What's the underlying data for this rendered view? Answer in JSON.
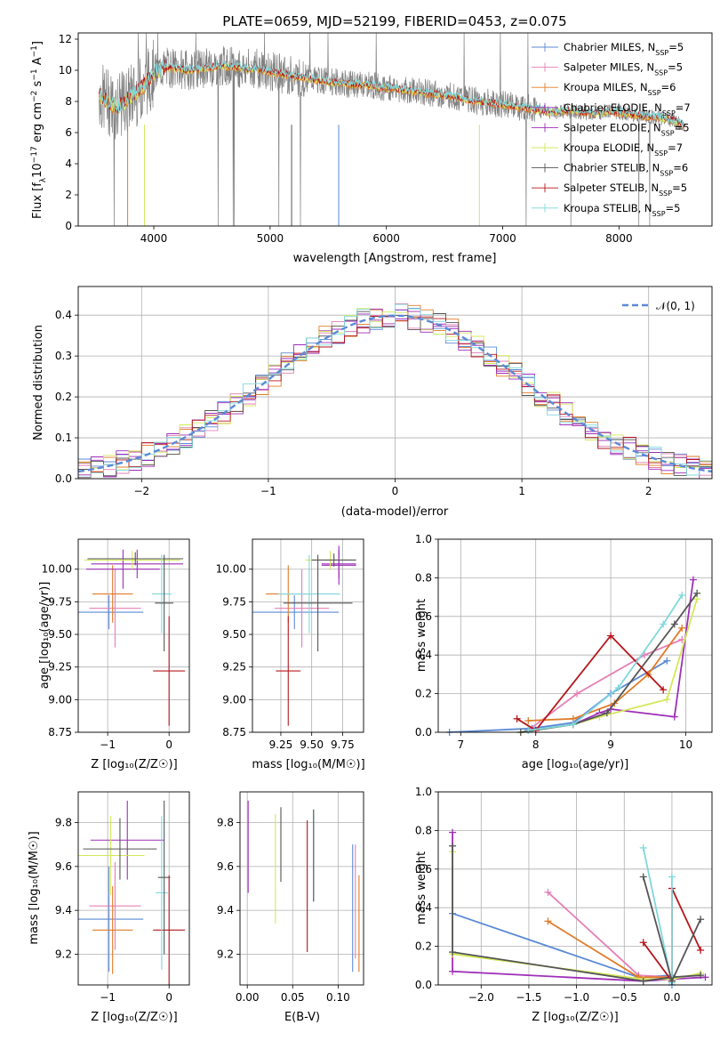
{
  "title": "PLATE=0659, MJD=52199, FIBERID=0453, z=0.075",
  "colors": {
    "Chabrier MILES": "#5b8ad6",
    "Salpeter MILES": "#e57fb6",
    "Kroupa MILES": "#e07b28",
    "Chabrier ELODIE": "#9e2fb8",
    "Salpeter ELODIE": "#9e2fb8",
    "Kroupa ELODIE": "#d4e85a",
    "Chabrier STELIB": "#555555",
    "Salpeter STELIB": "#b5171c",
    "Kroupa STELIB": "#7fd8dc"
  },
  "chart_data": [
    {
      "type": "line",
      "id": "spectrum",
      "title": "PLATE=0659, MJD=52199, FIBERID=0453, z=0.075",
      "xlabel": "wavelength [Angstrom, rest frame]",
      "ylabel_parts": [
        "Flux [f",
        "λ",
        "10",
        "−17",
        " erg cm",
        "−2",
        " s",
        "−1",
        " A",
        "−1",
        "]"
      ],
      "xlim": [
        3350,
        8800
      ],
      "ylim": [
        0,
        12.4
      ],
      "xticks": [
        4000,
        5000,
        6000,
        7000,
        8000
      ],
      "yticks": [
        0,
        2,
        4,
        6,
        8,
        10,
        12
      ],
      "grid": false,
      "legend_position": "right",
      "data_series": {
        "name": "data",
        "color": "#808080",
        "x": [
          3530,
          3600,
          3700,
          3800,
          3900,
          4000,
          4100,
          4200,
          4300,
          4400,
          4500,
          4600,
          4700,
          4800,
          4900,
          5000,
          5100,
          5200,
          5300,
          5400,
          5500,
          5600,
          5700,
          5800,
          5900,
          6000,
          6100,
          6200,
          6300,
          6400,
          6500,
          6600,
          6700,
          6800,
          6900,
          7000,
          7100,
          7200,
          7300,
          7400,
          7500,
          7600,
          7700,
          7800,
          7900,
          8000,
          8100,
          8200,
          8300,
          8400,
          8500,
          8560
        ],
        "y": [
          8.4,
          8.0,
          7.6,
          8.3,
          8.9,
          9.8,
          10.2,
          10.1,
          10.0,
          10.1,
          10.2,
          10.3,
          10.2,
          10.1,
          10.1,
          9.9,
          9.8,
          9.6,
          9.5,
          9.4,
          9.3,
          9.2,
          9.1,
          9.1,
          9.0,
          8.9,
          8.8,
          8.7,
          8.6,
          8.5,
          8.4,
          8.3,
          8.1,
          8.0,
          7.9,
          7.8,
          7.7,
          7.6,
          7.5,
          7.3,
          7.4,
          7.4,
          7.3,
          7.2,
          7.4,
          7.3,
          7.2,
          7.1,
          7.0,
          6.9,
          6.7,
          6.5
        ]
      },
      "models": [
        {
          "name": "Chabrier MILES",
          "nssp": "5"
        },
        {
          "name": "Salpeter MILES",
          "nssp": "5"
        },
        {
          "name": "Kroupa MILES",
          "nssp": "6"
        },
        {
          "name": "Chabrier ELODIE",
          "nssp": "7"
        },
        {
          "name": "Salpeter ELODIE",
          "nssp": "5"
        },
        {
          "name": "Kroupa ELODIE",
          "nssp": "7"
        },
        {
          "name": "Chabrier STELIB",
          "nssp": "6"
        },
        {
          "name": "Salpeter STELIB",
          "nssp": "5"
        },
        {
          "name": "Kroupa STELIB",
          "nssp": "5"
        }
      ]
    },
    {
      "type": "line",
      "id": "residuals",
      "xlabel": "(data-model)/error",
      "ylabel": "Normed distribution",
      "xlim": [
        -2.5,
        2.5
      ],
      "ylim": [
        0,
        0.47
      ],
      "xticks": [
        -2,
        -1,
        0,
        1,
        2
      ],
      "yticks": [
        0.0,
        0.1,
        0.2,
        0.3,
        0.4
      ],
      "grid": true,
      "legend_position": "top-right",
      "legend": [
        {
          "name": "𝒩(0, 1)",
          "color": "#5b8ad6",
          "dashed": true
        }
      ],
      "bin_edges_start": -2.5,
      "bin_width": 0.1
    },
    {
      "type": "scatter",
      "id": "age_vs_Z",
      "xlabel": "Z [log₁₀(Z/Z☉)]",
      "ylabel": "age  [log₁₀(age/yr)]",
      "xlim": [
        -1.48,
        0.33
      ],
      "ylim": [
        8.75,
        10.23
      ],
      "xticks": [
        -1,
        0
      ],
      "yticks": [
        8.75,
        9.0,
        9.25,
        9.5,
        9.75,
        10.0
      ],
      "grid": true,
      "points": [
        {
          "model": "Chabrier MILES",
          "x": -0.98,
          "xerr": 0.56,
          "y": 9.67,
          "yerr": 0.13
        },
        {
          "model": "Salpeter MILES",
          "x": -0.88,
          "xerr": 0.42,
          "y": 9.7,
          "yerr": 0.3
        },
        {
          "model": "Kroupa MILES",
          "x": -0.92,
          "xerr": 0.33,
          "y": 9.81,
          "yerr": 0.22
        },
        {
          "model": "Chabrier ELODIE",
          "x": -0.52,
          "xerr": 0.75,
          "y": 10.04,
          "yerr": 0.11
        },
        {
          "model": "Salpeter ELODIE",
          "x": -0.75,
          "xerr": 0.6,
          "y": 10.0,
          "yerr": 0.15
        },
        {
          "model": "Kroupa ELODIE",
          "x": -0.6,
          "xerr": 0.78,
          "y": 10.07,
          "yerr": 0.07
        },
        {
          "model": "Chabrier STELIB",
          "x": -0.55,
          "xerr": 0.78,
          "y": 10.08,
          "yerr": 0.05
        },
        {
          "model": "Salpeter STELIB",
          "x": 0.0,
          "xerr": 0.26,
          "y": 9.22,
          "yerr": 0.42
        },
        {
          "model": "Kroupa STELIB",
          "x": -0.12,
          "xerr": 0.16,
          "y": 9.81,
          "yerr": 0.3
        },
        {
          "model": "Chabrier STELIB",
          "x": -0.08,
          "xerr": 0.15,
          "y": 9.74,
          "yerr": 0.37
        }
      ]
    },
    {
      "type": "scatter",
      "id": "age_vs_mass",
      "xlabel": "mass [log₁₀(M/M☉)]",
      "ylabel": "",
      "xlim": [
        9.02,
        9.92
      ],
      "ylim": [
        8.75,
        10.23
      ],
      "xticks": [
        9.25,
        9.5,
        9.75
      ],
      "yticks": [
        8.75,
        9.0,
        9.25,
        9.5,
        9.75,
        10.0
      ],
      "grid": true,
      "points": [
        {
          "model": "Chabrier MILES",
          "x": 9.36,
          "xerr": 0.36,
          "y": 9.67,
          "yerr": 0.13
        },
        {
          "model": "Salpeter MILES",
          "x": 9.42,
          "xerr": 0.22,
          "y": 9.7,
          "yerr": 0.3
        },
        {
          "model": "Kroupa MILES",
          "x": 9.31,
          "xerr": 0.18,
          "y": 9.81,
          "yerr": 0.22
        },
        {
          "model": "Chabrier ELODIE",
          "x": 9.72,
          "xerr": 0.14,
          "y": 10.04,
          "yerr": 0.11
        },
        {
          "model": "Salpeter ELODIE",
          "x": 9.72,
          "xerr": 0.14,
          "y": 10.03,
          "yerr": 0.15
        },
        {
          "model": "Kroupa ELODIE",
          "x": 9.65,
          "xerr": 0.2,
          "y": 10.07,
          "yerr": 0.07
        },
        {
          "model": "Chabrier STELIB",
          "x": 9.68,
          "xerr": 0.18,
          "y": 10.07,
          "yerr": 0.05
        },
        {
          "model": "Salpeter STELIB",
          "x": 9.31,
          "xerr": 0.1,
          "y": 9.22,
          "yerr": 0.42
        },
        {
          "model": "Kroupa STELIB",
          "x": 9.48,
          "xerr": 0.25,
          "y": 9.81,
          "yerr": 0.3
        },
        {
          "model": "Chabrier STELIB",
          "x": 9.55,
          "xerr": 0.28,
          "y": 9.74,
          "yerr": 0.37
        }
      ]
    },
    {
      "type": "line",
      "id": "mass_weight_vs_age",
      "xlabel": "age  [log₁₀(age/yr)]",
      "ylabel": "mass weight",
      "xlim": [
        6.7,
        10.35
      ],
      "ylim": [
        0,
        1.0
      ],
      "xticks": [
        7,
        8,
        9,
        10
      ],
      "yticks": [
        0.0,
        0.2,
        0.4,
        0.6,
        0.8,
        1.0
      ],
      "grid": true,
      "series": [
        {
          "model": "Chabrier MILES",
          "x": [
            6.85,
            7.95,
            8.5,
            9.0,
            9.75
          ],
          "y": [
            0.0,
            0.02,
            0.05,
            0.2,
            0.37
          ]
        },
        {
          "model": "Salpeter MILES",
          "x": [
            7.9,
            8.55,
            9.45,
            9.95
          ],
          "y": [
            0.01,
            0.2,
            0.4,
            0.48
          ]
        },
        {
          "model": "Kroupa MILES",
          "x": [
            7.9,
            8.5,
            9.05,
            9.5,
            9.95
          ],
          "y": [
            0.06,
            0.07,
            0.15,
            0.3,
            0.54
          ]
        },
        {
          "model": "Chabrier ELODIE",
          "x": [
            7.9,
            8.5,
            8.85,
            9.0,
            9.85,
            10.1
          ],
          "y": [
            0.01,
            0.04,
            0.1,
            0.12,
            0.08,
            0.79
          ]
        },
        {
          "model": "Kroupa ELODIE",
          "x": [
            7.8,
            8.5,
            8.85,
            9.75,
            10.15
          ],
          "y": [
            0.0,
            0.04,
            0.08,
            0.17,
            0.69
          ]
        },
        {
          "model": "Chabrier STELIB",
          "x": [
            7.8,
            8.5,
            8.95,
            9.85,
            10.15
          ],
          "y": [
            0.0,
            0.04,
            0.1,
            0.56,
            0.72
          ]
        },
        {
          "model": "Salpeter STELIB",
          "x": [
            7.75,
            8.0,
            9.0,
            9.7
          ],
          "y": [
            0.07,
            0.01,
            0.5,
            0.22
          ]
        },
        {
          "model": "Kroupa STELIB",
          "x": [
            7.9,
            8.5,
            9.1,
            9.7,
            9.95
          ],
          "y": [
            0.01,
            0.04,
            0.23,
            0.56,
            0.71
          ]
        }
      ]
    },
    {
      "type": "scatter",
      "id": "mass_vs_Z",
      "xlabel": "Z [log₁₀(Z/Z☉)]",
      "ylabel": "mass [log₁₀(M/M☉)]",
      "xlim": [
        -1.48,
        0.33
      ],
      "ylim": [
        9.06,
        9.94
      ],
      "xticks": [
        -1,
        0
      ],
      "yticks": [
        9.2,
        9.4,
        9.6,
        9.8
      ],
      "grid": true,
      "points": [
        {
          "model": "Chabrier MILES",
          "x": -0.98,
          "xerr": 0.56,
          "y": 9.36,
          "yerr": 0.24
        },
        {
          "model": "Salpeter MILES",
          "x": -0.88,
          "xerr": 0.42,
          "y": 9.42,
          "yerr": 0.2
        },
        {
          "model": "Kroupa MILES",
          "x": -0.92,
          "xerr": 0.33,
          "y": 9.31,
          "yerr": 0.2
        },
        {
          "model": "Chabrier ELODIE",
          "x": -0.68,
          "xerr": 0.6,
          "y": 9.72,
          "yerr": 0.18
        },
        {
          "model": "Kroupa ELODIE",
          "x": -0.95,
          "xerr": 0.55,
          "y": 9.65,
          "yerr": 0.18
        },
        {
          "model": "Chabrier STELIB",
          "x": -0.8,
          "xerr": 0.6,
          "y": 9.68,
          "yerr": 0.14
        },
        {
          "model": "Salpeter STELIB",
          "x": 0.0,
          "xerr": 0.26,
          "y": 9.31,
          "yerr": 0.25
        },
        {
          "model": "Kroupa STELIB",
          "x": -0.12,
          "xerr": 0.1,
          "y": 9.48,
          "yerr": 0.35
        },
        {
          "model": "Chabrier STELIB",
          "x": -0.08,
          "xerr": 0.1,
          "y": 9.55,
          "yerr": 0.35
        }
      ]
    },
    {
      "type": "scatter",
      "id": "mass_vs_ebv",
      "xlabel": "E(B-V)",
      "ylabel": "",
      "xlim": [
        -0.008,
        0.128
      ],
      "ylim": [
        9.06,
        9.94
      ],
      "xticks": [
        0.0,
        0.05,
        0.1
      ],
      "yticks": [
        9.2,
        9.4,
        9.6,
        9.8
      ],
      "grid": true,
      "points": [
        {
          "model": "Chabrier ELODIE",
          "x": 0.001,
          "y": 9.69,
          "yerr": 0.21
        },
        {
          "model": "Kroupa ELODIE",
          "x": 0.031,
          "y": 9.59,
          "yerr": 0.25
        },
        {
          "model": "Chabrier STELIB",
          "x": 0.037,
          "y": 9.7,
          "yerr": 0.17
        },
        {
          "model": "Kroupa STELIB",
          "x": 0.073,
          "y": 9.65,
          "yerr": 0.21
        },
        {
          "model": "Chabrier STELIB",
          "x": 0.073,
          "y": 9.65,
          "yerr": 0.21
        },
        {
          "model": "Salpeter STELIB",
          "x": 0.066,
          "y": 9.51,
          "yerr": 0.3
        },
        {
          "model": "Chabrier MILES",
          "x": 0.116,
          "y": 9.41,
          "yerr": 0.29
        },
        {
          "model": "Salpeter MILES",
          "x": 0.119,
          "y": 9.44,
          "yerr": 0.26
        },
        {
          "model": "Kroupa MILES",
          "x": 0.123,
          "y": 9.34,
          "yerr": 0.22
        }
      ]
    },
    {
      "type": "line",
      "id": "mass_weight_vs_Z",
      "xlabel": "Z [log₁₀(Z/Z☉)]",
      "ylabel": "mass weight",
      "xlim": [
        -2.45,
        0.42
      ],
      "ylim": [
        0,
        1.0
      ],
      "xticks": [
        -2.0,
        -1.5,
        -1.0,
        -0.5,
        0.0
      ],
      "yticks": [
        0.0,
        0.2,
        0.4,
        0.6,
        0.8,
        1.0
      ],
      "grid": true,
      "series": [
        {
          "model": "Chabrier MILES",
          "x": [
            -2.3,
            -0.35,
            0.0,
            0.0
          ],
          "y": [
            0.37,
            0.04,
            0.05,
            0.0
          ]
        },
        {
          "model": "Salpeter MILES",
          "x": [
            -1.3,
            -0.35,
            0.0
          ],
          "y": [
            0.48,
            0.05,
            0.04
          ]
        },
        {
          "model": "Kroupa MILES",
          "x": [
            -1.3,
            -0.35,
            0.0
          ],
          "y": [
            0.33,
            0.04,
            0.04
          ]
        },
        {
          "model": "Chabrier ELODIE",
          "x": [
            -2.3,
            -2.3,
            -0.3,
            0.0,
            0.35
          ],
          "y": [
            0.79,
            0.07,
            0.02,
            0.03,
            0.04
          ]
        },
        {
          "model": "Kroupa ELODIE",
          "x": [
            -2.3,
            -2.3,
            -0.3,
            0.0,
            0.3
          ],
          "y": [
            0.69,
            0.16,
            0.03,
            0.03,
            0.06
          ]
        },
        {
          "model": "Chabrier STELIB",
          "x": [
            -2.3,
            -2.3,
            -0.3,
            0.0,
            0.3
          ],
          "y": [
            0.72,
            0.17,
            0.02,
            0.04,
            0.05
          ]
        },
        {
          "model": "Salpeter STELIB",
          "x": [
            -0.3,
            0.0,
            0.0,
            0.3
          ],
          "y": [
            0.22,
            0.02,
            0.5,
            0.18
          ]
        },
        {
          "model": "Kroupa STELIB",
          "x": [
            -0.3,
            0.0,
            0.0
          ],
          "y": [
            0.71,
            0.01,
            0.56
          ]
        },
        {
          "model": "Chabrier STELIB",
          "x": [
            -0.3,
            0.0,
            0.3
          ],
          "y": [
            0.56,
            0.02,
            0.34
          ]
        }
      ]
    }
  ]
}
